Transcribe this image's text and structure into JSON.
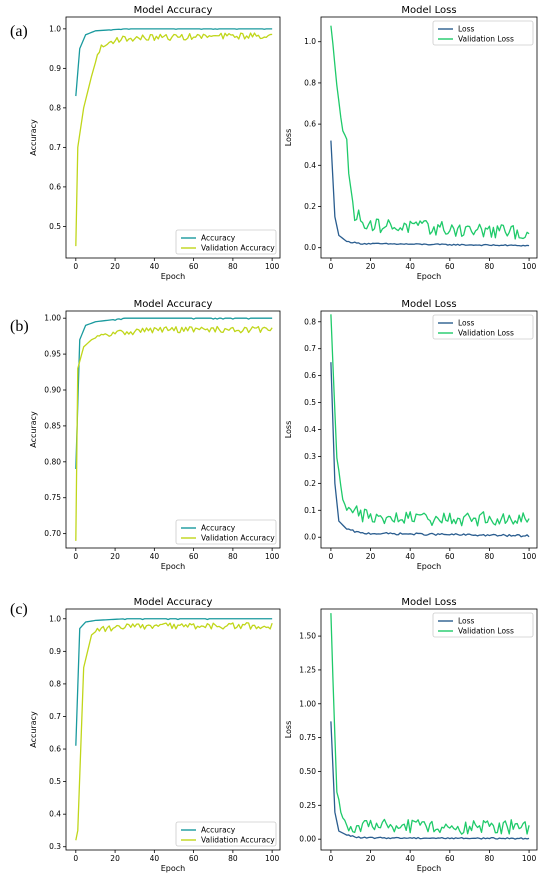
{
  "panel_labels": [
    "(a)",
    "(b)",
    "(c)"
  ],
  "colors": {
    "accuracy": "#1a9a9e",
    "val_accuracy": "#c0d61a",
    "loss": "#2a5d8f",
    "val_loss": "#1fca6a"
  },
  "chart_data": [
    {
      "panel": "(a)",
      "type": "line",
      "title": "Model Accuracy",
      "xlabel": "Epoch",
      "ylabel": "Accuracy",
      "xlim": [
        -5,
        104
      ],
      "ylim": [
        0.42,
        1.03
      ],
      "xticks": [
        0,
        20,
        40,
        60,
        80,
        100
      ],
      "yticks": [
        0.5,
        0.6,
        0.7,
        0.8,
        0.9,
        1.0
      ],
      "ytick_labels": [
        "0.5",
        "0.6",
        "0.7",
        "0.8",
        "0.9",
        "1.0"
      ],
      "legend": "lower-right",
      "series": [
        {
          "name": "Accuracy",
          "color_key": "accuracy",
          "shape": "acc",
          "values": [
            0.83,
            0.95,
            0.985,
            0.995,
            1.0,
            1.0
          ]
        },
        {
          "name": "Validation Accuracy",
          "color_key": "val_accuracy",
          "shape": "val_acc",
          "values": [
            0.45,
            0.7,
            0.8,
            0.88,
            0.95,
            0.975,
            0.98,
            0.985
          ]
        }
      ]
    },
    {
      "panel": "(a)",
      "type": "line",
      "title": "Model Loss",
      "xlabel": "Epoch",
      "ylabel": "Loss",
      "xlim": [
        -5,
        104
      ],
      "ylim": [
        -0.05,
        1.12
      ],
      "xticks": [
        0,
        20,
        40,
        60,
        80,
        100
      ],
      "yticks": [
        0.0,
        0.2,
        0.4,
        0.6,
        0.8,
        1.0
      ],
      "ytick_labels": [
        "0.0",
        "0.2",
        "0.4",
        "0.6",
        "0.8",
        "1.0"
      ],
      "legend": "top-right",
      "series": [
        {
          "name": "Loss",
          "color_key": "loss",
          "shape": "loss",
          "values": [
            0.52,
            0.15,
            0.06,
            0.03,
            0.02,
            0.01
          ]
        },
        {
          "name": "Validation Loss",
          "color_key": "val_loss",
          "shape": "val_loss",
          "values": [
            1.07,
            0.8,
            0.57,
            0.53,
            0.35,
            0.15,
            0.1,
            0.09,
            0.06
          ]
        }
      ]
    },
    {
      "panel": "(b)",
      "type": "line",
      "title": "Model Accuracy",
      "xlabel": "Epoch",
      "ylabel": "Accuracy",
      "xlim": [
        -5,
        104
      ],
      "ylim": [
        0.68,
        1.01
      ],
      "xticks": [
        0,
        20,
        40,
        60,
        80,
        100
      ],
      "yticks": [
        0.7,
        0.75,
        0.8,
        0.85,
        0.9,
        0.95,
        1.0
      ],
      "ytick_labels": [
        "0.70",
        "0.75",
        "0.80",
        "0.85",
        "0.90",
        "0.95",
        "1.00"
      ],
      "legend": "lower-right",
      "series": [
        {
          "name": "Accuracy",
          "color_key": "accuracy",
          "shape": "acc",
          "values": [
            0.79,
            0.97,
            0.99,
            0.995,
            1.0,
            1.0
          ]
        },
        {
          "name": "Validation Accuracy",
          "color_key": "val_accuracy",
          "shape": "val_acc",
          "values": [
            0.69,
            0.93,
            0.96,
            0.97,
            0.975,
            0.98,
            0.985
          ]
        }
      ]
    },
    {
      "panel": "(b)",
      "type": "line",
      "title": "Model Loss",
      "xlabel": "Epoch",
      "ylabel": "Loss",
      "xlim": [
        -5,
        104
      ],
      "ylim": [
        -0.04,
        0.84
      ],
      "xticks": [
        0,
        20,
        40,
        60,
        80,
        100
      ],
      "yticks": [
        0.0,
        0.1,
        0.2,
        0.3,
        0.4,
        0.5,
        0.6,
        0.7,
        0.8
      ],
      "ytick_labels": [
        "0.0",
        "0.1",
        "0.2",
        "0.3",
        "0.4",
        "0.5",
        "0.6",
        "0.7",
        "0.8"
      ],
      "legend": "top-right",
      "series": [
        {
          "name": "Loss",
          "color_key": "loss",
          "shape": "loss",
          "values": [
            0.65,
            0.2,
            0.06,
            0.03,
            0.015,
            0.005
          ]
        },
        {
          "name": "Validation Loss",
          "color_key": "val_loss",
          "shape": "val_loss",
          "values": [
            0.82,
            0.3,
            0.15,
            0.11,
            0.1,
            0.09,
            0.06
          ]
        }
      ]
    },
    {
      "panel": "(c)",
      "type": "line",
      "title": "Model Accuracy",
      "xlabel": "Epoch",
      "ylabel": "Accuracy",
      "xlim": [
        -5,
        104
      ],
      "ylim": [
        0.29,
        1.03
      ],
      "xticks": [
        0,
        20,
        40,
        60,
        80,
        100
      ],
      "yticks": [
        0.3,
        0.4,
        0.5,
        0.6,
        0.7,
        0.8,
        0.9,
        1.0
      ],
      "ytick_labels": [
        "0.3",
        "0.4",
        "0.5",
        "0.6",
        "0.7",
        "0.8",
        "0.9",
        "1.0"
      ],
      "legend": "lower-right",
      "series": [
        {
          "name": "Accuracy",
          "color_key": "accuracy",
          "shape": "acc",
          "values": [
            0.61,
            0.97,
            0.99,
            0.995,
            1.0,
            1.0
          ]
        },
        {
          "name": "Validation Accuracy",
          "color_key": "val_accuracy",
          "shape": "val_acc",
          "values": [
            0.32,
            0.35,
            0.85,
            0.95,
            0.97,
            0.975,
            0.98
          ]
        }
      ]
    },
    {
      "panel": "(c)",
      "type": "line",
      "title": "Model Loss",
      "xlabel": "Epoch",
      "ylabel": "Loss",
      "xlim": [
        -5,
        104
      ],
      "ylim": [
        -0.08,
        1.7
      ],
      "xticks": [
        0,
        20,
        40,
        60,
        80,
        100
      ],
      "yticks": [
        0.0,
        0.25,
        0.5,
        0.75,
        1.0,
        1.25,
        1.5
      ],
      "ytick_labels": [
        "0.00",
        "0.25",
        "0.50",
        "0.75",
        "1.00",
        "1.25",
        "1.50"
      ],
      "legend": "top-right",
      "series": [
        {
          "name": "Loss",
          "color_key": "loss",
          "shape": "loss",
          "values": [
            0.87,
            0.2,
            0.06,
            0.03,
            0.01,
            0.005
          ]
        },
        {
          "name": "Validation Loss",
          "color_key": "val_loss",
          "shape": "val_loss",
          "values": [
            1.65,
            0.35,
            0.15,
            0.09,
            0.08,
            0.075
          ]
        }
      ]
    }
  ]
}
